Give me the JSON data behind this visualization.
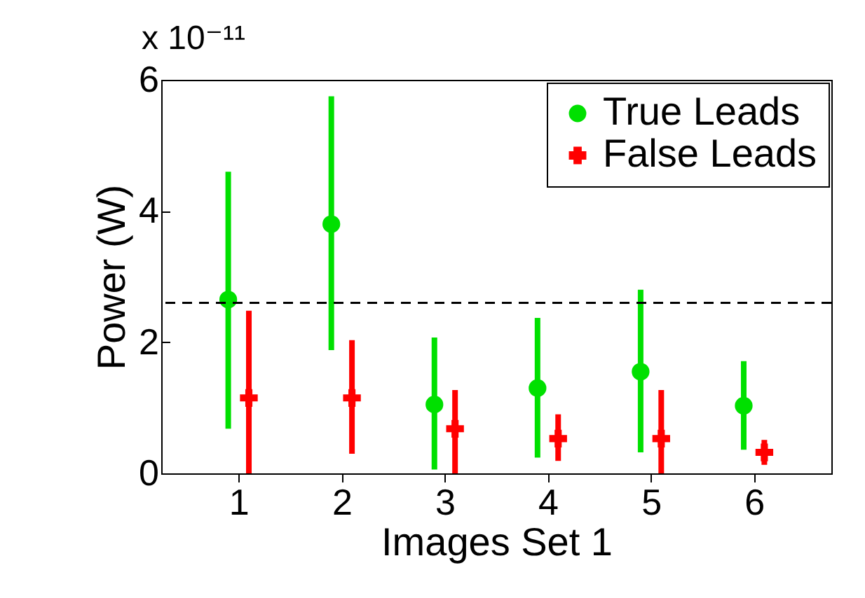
{
  "chart_data": {
    "type": "scatter",
    "xlabel": "Images Set 1",
    "ylabel": "Power (W)",
    "annotations": [
      "x 10⁻¹¹"
    ],
    "xlim": [
      0.25,
      6.75
    ],
    "xticks": [
      1,
      2,
      3,
      4,
      5,
      6
    ],
    "ylim": [
      0,
      6
    ],
    "yticks": [
      0,
      2,
      4,
      6
    ],
    "grid": false,
    "legend": "top right",
    "ref_lines": [
      {
        "axis": "y",
        "value": 2.6,
        "color": "#000000",
        "line_style": "dashed"
      }
    ],
    "series": [
      {
        "name": "True Leads",
        "color": "#00e000",
        "marker": "circle",
        "x": [
          0.9,
          1.9,
          2.9,
          3.9,
          4.9,
          5.9
        ],
        "values": [
          2.65,
          3.8,
          1.05,
          1.3,
          1.55,
          1.03
        ],
        "errors": [
          [
            0.68,
            4.6
          ],
          [
            1.88,
            5.75
          ],
          [
            0.06,
            2.07
          ],
          [
            0.24,
            2.37
          ],
          [
            0.32,
            2.8
          ],
          [
            0.36,
            1.71
          ]
        ]
      },
      {
        "name": "False Leads",
        "color": "#ff0000",
        "marker": "cross",
        "x": [
          1.1,
          2.1,
          3.1,
          4.1,
          5.1,
          6.1
        ],
        "values": [
          1.15,
          1.15,
          0.68,
          0.53,
          0.53,
          0.32
        ],
        "errors": [
          [
            0,
            2.48
          ],
          [
            0.3,
            2.03
          ],
          [
            0,
            1.27
          ],
          [
            0.19,
            0.9
          ],
          [
            0,
            1.27
          ],
          [
            0.13,
            0.51
          ]
        ]
      }
    ]
  }
}
